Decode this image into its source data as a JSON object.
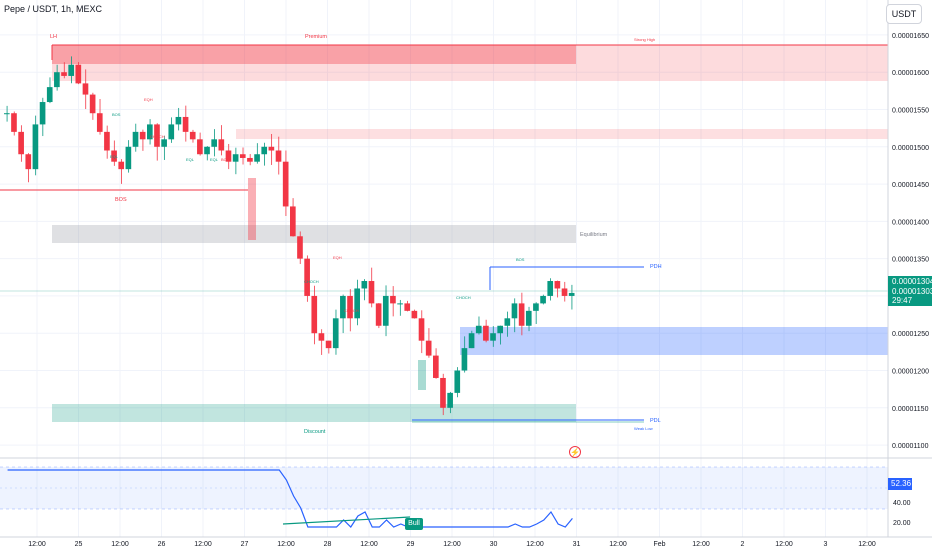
{
  "header": {
    "symbol": "Pepe / USDT, 1h, MEXC",
    "currency_button": "USDT"
  },
  "price_tag": {
    "line1": "0.00001304",
    "line2": "0.00001303",
    "line3": "29:47"
  },
  "rsi_tag": {
    "value": "52.36"
  },
  "bull_tag": {
    "label": "Bull"
  },
  "alert_icon": {
    "name": "lightning-icon",
    "glyph": "⚡"
  },
  "colors": {
    "up": "#089981",
    "down": "#f23645",
    "rsi": "#2962ff",
    "zone_red": "#f23645",
    "zone_green": "#089981",
    "zone_blue": "#2962ff",
    "grey_zone": "#9598a1"
  },
  "annotations": {
    "lh": "LH",
    "premium": "Premium",
    "strong_high": "Strong High",
    "bos_left": "BOS",
    "equilibrium": "Equilibrium",
    "pdh": "PDH",
    "pdl": "PDL",
    "discount": "Discount",
    "weak_low": "Weak Low",
    "bos_small": "BOS",
    "eqh1": "EQH",
    "choch1": "CHOCH",
    "eql1": "EQL",
    "eql2": "EQL",
    "eql3": "EQL",
    "bos_mid": "BOS",
    "eqh2": "EQH",
    "choch2": "CHOCH",
    "choch3": "CHOCH",
    "choch4": "CHOCH",
    "bos_right": "BOS"
  },
  "chart_data": {
    "type": "candlestick",
    "price_axis": {
      "ticks": [
        "0.00001650",
        "0.00001600",
        "0.00001550",
        "0.00001500",
        "0.00001450",
        "0.00001400",
        "0.00001350",
        "0.00001300",
        "0.00001250",
        "0.00001200",
        "0.00001150",
        "0.00001100"
      ],
      "ylim": [
        1.08e-05,
        1.67e-05
      ]
    },
    "rsi_axis": {
      "ticks": [
        "60.00",
        "40.00",
        "20.00"
      ],
      "ylim": [
        10,
        80
      ]
    },
    "time_axis": {
      "ticks": [
        "12:00",
        "25",
        "12:00",
        "26",
        "12:00",
        "27",
        "12:00",
        "28",
        "12:00",
        "29",
        "12:00",
        "30",
        "12:00",
        "31",
        "12:00",
        "Feb",
        "12:00",
        "2",
        "12:00",
        "3",
        "12:00"
      ]
    },
    "close_path": [
      1.545e-05,
      1.52e-05,
      1.49e-05,
      1.47e-05,
      1.53e-05,
      1.56e-05,
      1.58e-05,
      1.6e-05,
      1.595e-05,
      1.61e-05,
      1.585e-05,
      1.57e-05,
      1.545e-05,
      1.52e-05,
      1.495e-05,
      1.48e-05,
      1.47e-05,
      1.5e-05,
      1.52e-05,
      1.51e-05,
      1.53e-05,
      1.5e-05,
      1.51e-05,
      1.53e-05,
      1.54e-05,
      1.52e-05,
      1.51e-05,
      1.49e-05,
      1.5e-05,
      1.51e-05,
      1.495e-05,
      1.48e-05,
      1.49e-05,
      1.485e-05,
      1.48e-05,
      1.49e-05,
      1.5e-05,
      1.495e-05,
      1.48e-05,
      1.42e-05,
      1.38e-05,
      1.35e-05,
      1.3e-05,
      1.25e-05,
      1.24e-05,
      1.23e-05,
      1.27e-05,
      1.3e-05,
      1.27e-05,
      1.31e-05,
      1.32e-05,
      1.29e-05,
      1.26e-05,
      1.3e-05,
      1.29e-05,
      1.29e-05,
      1.28e-05,
      1.27e-05,
      1.24e-05,
      1.22e-05,
      1.19e-05,
      1.15e-05,
      1.17e-05,
      1.2e-05,
      1.23e-05,
      1.25e-05,
      1.26e-05,
      1.24e-05,
      1.25e-05,
      1.26e-05,
      1.27e-05,
      1.29e-05,
      1.26e-05,
      1.28e-05,
      1.29e-05,
      1.3e-05,
      1.32e-05,
      1.31e-05,
      1.3e-05,
      1.304e-05
    ]
  }
}
